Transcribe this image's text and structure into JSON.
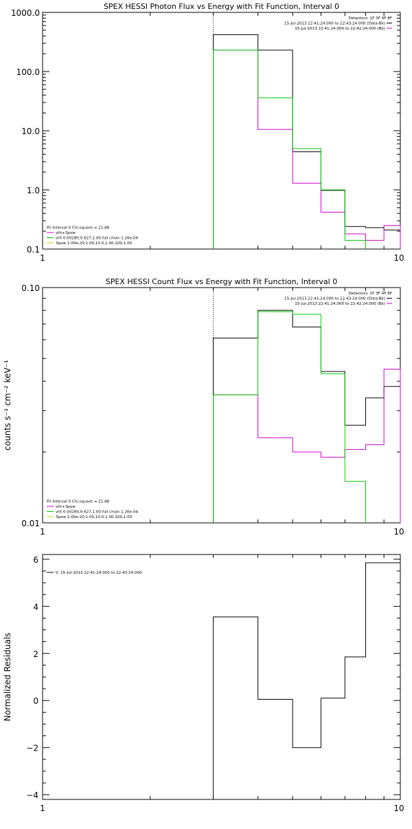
{
  "chart_data": [
    {
      "type": "line",
      "title": "SPEX HESSI Photon Flux vs Energy with Fit Function, Interval 0",
      "ylabel": "",
      "xscale": "log",
      "yscale": "log",
      "xlim": [
        1,
        10
      ],
      "ylim": [
        0.1,
        1000
      ],
      "xtick_labels": [
        "1",
        "10"
      ],
      "ytick_labels": [
        "0.1",
        "1.0",
        "10.0",
        "100.0",
        "1000.0"
      ],
      "vline_x": 3.0,
      "legend_right": {
        "placement": "top-right",
        "entries": [
          "Detectors: 1F 3F 4F 8F",
          "15-Jul-2013 22:41:24.000 to 22:43:24.000 (Data-Bk)",
          "15-Jul-2013 22:41:24.000 to 22:42:24.000 (Bk)"
        ]
      },
      "legend_left": {
        "placement": "bottom-left",
        "entries": [
          "Fit Interval 0   Chi-square = 21.88",
          "vth+3pow",
          "vth 0.00280,0.627,1.00  full chian 1.26e-04",
          "3pow 1.00e-20,1.00,10.0,1.00,100,1.00"
        ]
      },
      "series": [
        {
          "color": "#000000",
          "edges": [
            3.0,
            4.0,
            5.0,
            6.0,
            7.0,
            8.0,
            9.0,
            10.0
          ],
          "values": [
            420,
            230,
            4.4,
            0.98,
            0.24,
            0.23,
            0.21
          ]
        },
        {
          "color": "#cc00cc",
          "edges": [
            3.0,
            4.0,
            5.0,
            6.0,
            7.0,
            8.0,
            9.0,
            10.0
          ],
          "values": [
            230,
            10.5,
            1.3,
            0.42,
            0.18,
            0.14,
            0.25
          ]
        },
        {
          "color": "#00cc00",
          "edges": [
            3.0,
            4.0,
            5.0,
            6.0,
            7.0,
            8.0
          ],
          "values": [
            230,
            36,
            5.0,
            1.0,
            0.14
          ]
        }
      ],
      "dotted_vline_color": "#000000"
    },
    {
      "type": "line",
      "title": "SPEX HESSI Count Flux vs Energy with Fit Function, Interval 0",
      "ylabel": "counts s⁻¹ cm⁻² keV⁻¹",
      "xscale": "log",
      "yscale": "log",
      "xlim": [
        1,
        10
      ],
      "ylim": [
        0.01,
        0.1
      ],
      "xtick_labels": [
        "1",
        "10"
      ],
      "ytick_labels": [
        "0.01",
        "0.10"
      ],
      "vline_x": 3.0,
      "legend_right": {
        "placement": "top-right",
        "entries": [
          "Detectors: 1F 3F 4F 8F",
          "15-Jul-2013 22:41:24.000 to 22:43:24.000 (Data-Bk)",
          "15-Jul-2013 22:41:24.000 to 22:42:24.000 (Bk)"
        ]
      },
      "legend_left": {
        "placement": "bottom-left",
        "entries": [
          "Fit Interval 0   Chi-square = 21.88",
          "vth+3pow",
          "vth 0.00280,0.627,1.00  full chian 1.26e-04",
          "3pow 1.00e-20,1.00,10.0,1.00,100,1.00"
        ]
      },
      "series": [
        {
          "color": "#000000",
          "edges": [
            3.0,
            4.0,
            5.0,
            6.0,
            7.0,
            8.0,
            9.0,
            10.0
          ],
          "values": [
            0.061,
            0.08,
            0.068,
            0.044,
            0.026,
            0.034,
            0.038
          ]
        },
        {
          "color": "#cc00cc",
          "edges": [
            3.0,
            4.0,
            5.0,
            6.0,
            7.0,
            8.0,
            9.0,
            10.0
          ],
          "values": [
            0.035,
            0.023,
            0.02,
            0.019,
            0.0205,
            0.0215,
            0.045
          ]
        },
        {
          "color": "#00cc00",
          "edges": [
            3.0,
            4.0,
            5.0,
            6.0,
            7.0,
            8.0
          ],
          "values": [
            0.035,
            0.079,
            0.077,
            0.043,
            0.015
          ]
        }
      ],
      "dotted_vline_color": "#000000"
    },
    {
      "type": "line",
      "title": "",
      "ylabel": "Normalized Residuals",
      "xscale": "log",
      "yscale": "linear",
      "xlim": [
        1,
        10
      ],
      "ylim": [
        -4.2,
        6.2
      ],
      "xtick_labels": [
        "1",
        "10"
      ],
      "ytick_values": [
        -4,
        -2,
        0,
        2,
        4,
        6
      ],
      "legend_left": {
        "placement": "top-left",
        "entries": [
          "0. 15-Jul-2013 22:41:24.000 to 22:43:24.000"
        ]
      },
      "series": [
        {
          "color": "#000000",
          "edges": [
            3.0,
            4.0,
            5.0,
            6.0,
            7.0,
            8.0,
            10.0
          ],
          "values": [
            3.55,
            0.05,
            -2.0,
            0.1,
            1.85,
            5.85
          ]
        }
      ]
    }
  ]
}
